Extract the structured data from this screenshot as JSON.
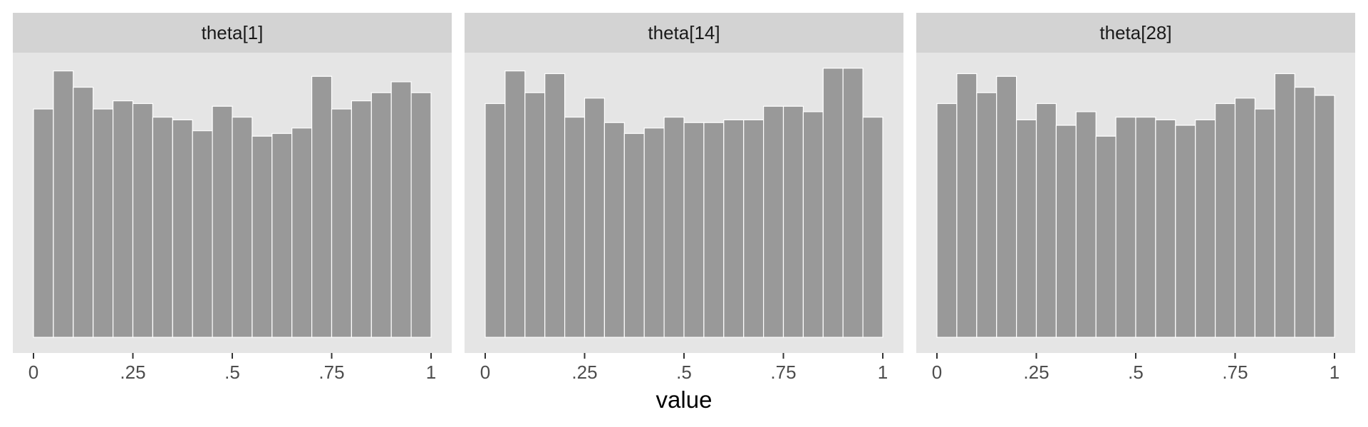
{
  "chart_data": {
    "type": "bar",
    "subtype": "faceted-histogram",
    "xlabel": "value",
    "xlim": [
      0,
      1
    ],
    "x_ticks": [
      0,
      0.25,
      0.5,
      0.75,
      1
    ],
    "x_tick_labels": [
      "0",
      ".25",
      ".5",
      ".75",
      "1"
    ],
    "y_axis_shown": false,
    "bins": 20,
    "ylim": [
      0,
      100
    ],
    "grid": false,
    "colors": {
      "bar_fill": "#999999",
      "bar_outline": "#ffffff",
      "panel_background": "#e5e5e5",
      "strip_background": "#d3d3d3",
      "tick_color": "#333333"
    },
    "facets": [
      {
        "title": "theta[1]",
        "values": [
          84,
          98,
          92,
          84,
          87,
          86,
          81,
          80,
          76,
          85,
          81,
          74,
          75,
          77,
          96,
          84,
          87,
          90,
          94,
          90
        ]
      },
      {
        "title": "theta[14]",
        "values": [
          86,
          98,
          90,
          97,
          81,
          88,
          79,
          75,
          77,
          81,
          79,
          79,
          80,
          80,
          85,
          85,
          83,
          99,
          99,
          81
        ]
      },
      {
        "title": "theta[28]",
        "values": [
          86,
          97,
          90,
          96,
          80,
          86,
          78,
          83,
          74,
          81,
          81,
          80,
          78,
          80,
          86,
          88,
          84,
          97,
          92,
          89
        ]
      }
    ]
  }
}
